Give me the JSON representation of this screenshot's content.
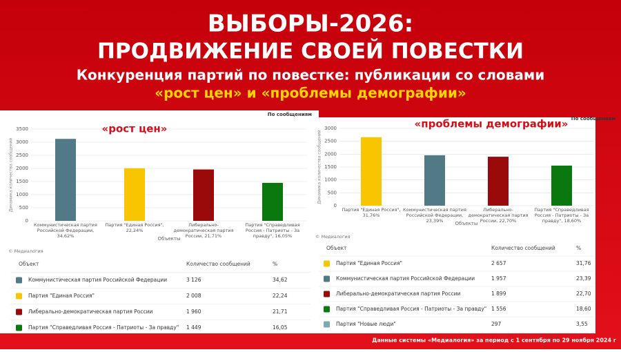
{
  "header": {
    "line1": "ВЫБОРЫ-2026:",
    "line2": "ПРОДВИЖЕНИЕ СВОЕЙ ПОВЕСТКИ",
    "subtitle": "Конкуренция партий по повестке: публикации со словами",
    "highlight": "«рост цен» и «проблемы демографии»"
  },
  "chart_data": [
    {
      "type": "bar",
      "title": "«рост цен»",
      "x_label": "Объекты",
      "y_label": "Динамика количества сообщений",
      "credit": "© Медиалогия",
      "categories": [
        "Коммунистическая партия Российской Федерации, 34,62%",
        "Партия \"Единая Россия\", 22,24%",
        "Либерально-демократическая партия России, 21,71%",
        "Партия \"Справедливая Россия - Патриоты - За правду\", 16,05%"
      ],
      "series": [
        {
          "name": "По сообщениям",
          "colors": [
            "#527a86",
            "#f7c600",
            "#9b0a0a",
            "#0b770f"
          ],
          "values": [
            3126,
            2008,
            1960,
            1449
          ]
        }
      ],
      "ylim": [
        0,
        3500
      ],
      "yticks": [
        0,
        500,
        1000,
        1500,
        2000,
        2500,
        3000,
        3500
      ],
      "grid": true
    },
    {
      "type": "bar",
      "title": "«проблемы демографии»",
      "x_label": "Объекты",
      "y_label": "Динамика количества сообщений",
      "credit": "© Медиалогия",
      "categories": [
        "Партия \"Единая Россия\", 31,76%",
        "Коммунистическая партия Российской Федерации, 23,39%",
        "Либерально-демократическая партия России, 22,70%",
        "Партия \"Справедливая Россия - Патриоты - За правду\", 18,60%"
      ],
      "series": [
        {
          "name": "По сообщениям",
          "colors": [
            "#f7c600",
            "#527a86",
            "#9b0a0a",
            "#0b770f"
          ],
          "values": [
            2657,
            1957,
            1899,
            1556
          ]
        }
      ],
      "ylim": [
        0,
        3000
      ],
      "yticks": [
        0,
        500,
        1000,
        1500,
        2000,
        2500,
        3000
      ],
      "grid": true
    }
  ],
  "tables": [
    {
      "columns": [
        "Объект",
        "Количество сообщений",
        "%"
      ],
      "rows": [
        {
          "object": "Коммунистическая партия Российской Федерации",
          "count": "3 126",
          "percent": "34,62",
          "color": "#527a86"
        },
        {
          "object": "Партия \"Единая Россия\"",
          "count": "2 008",
          "percent": "22,24",
          "color": "#f7c600"
        },
        {
          "object": "Либерально-демократическая партия России",
          "count": "1 960",
          "percent": "21,71",
          "color": "#9b0a0a"
        },
        {
          "object": "Партия \"Справедливая Россия - Патриоты - За правду\"",
          "count": "1 449",
          "percent": "16,05",
          "color": "#0b770f"
        }
      ]
    },
    {
      "columns": [
        "Объект",
        "Количество сообщений",
        "%"
      ],
      "rows": [
        {
          "object": "Партия \"Единая Россия\"",
          "count": "2 657",
          "percent": "31,76",
          "color": "#f7c600"
        },
        {
          "object": "Коммунистическая партия Российской Федерации",
          "count": "1 957",
          "percent": "23,39",
          "color": "#527a86"
        },
        {
          "object": "Либерально-демократическая партия России",
          "count": "1 899",
          "percent": "22,70",
          "color": "#9b0a0a"
        },
        {
          "object": "Партия \"Справедливая Россия - Патриоты - За правду\"",
          "count": "1 556",
          "percent": "18,60",
          "color": "#0b770f"
        },
        {
          "object": "Партия \"Новые люди\"",
          "count": "297",
          "percent": "3,55",
          "color": "#7fa6b3"
        }
      ]
    }
  ],
  "footer": "Данные системы «Медиалогия» за период с 1 сентября по 29 ноября 2024 г"
}
